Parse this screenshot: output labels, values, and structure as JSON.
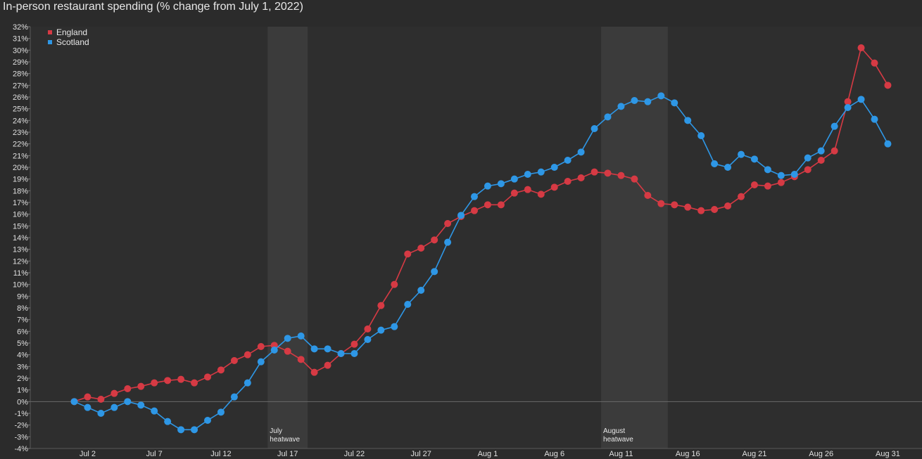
{
  "title": "In-person restaurant spending (% change from July 1, 2022)",
  "chart_data": {
    "type": "line",
    "title": "In-person restaurant spending (% change from July 1, 2022)",
    "xlabel": "",
    "ylabel": "",
    "x_start": "Jul 1",
    "x_end": "Aug 31",
    "x_tick_labels": [
      "Jul 2",
      "Jul 7",
      "Jul 12",
      "Jul 17",
      "Jul 22",
      "Jul 27",
      "Aug 1",
      "Aug 6",
      "Aug 11",
      "Aug 16",
      "Aug 21",
      "Aug 26",
      "Aug 31"
    ],
    "y_tick_labels": [
      "-4%",
      "-3%",
      "-2%",
      "-1%",
      "0%",
      "1%",
      "2%",
      "3%",
      "4%",
      "5%",
      "6%",
      "7%",
      "8%",
      "9%",
      "10%",
      "11%",
      "12%",
      "13%",
      "14%",
      "15%",
      "16%",
      "17%",
      "18%",
      "19%",
      "20%",
      "21%",
      "22%",
      "23%",
      "24%",
      "25%",
      "26%",
      "27%",
      "28%",
      "29%",
      "30%",
      "31%",
      "32%"
    ],
    "ylim": [
      -4,
      32
    ],
    "grid": false,
    "legend_position": "top-left",
    "bands": [
      {
        "label": [
          "July",
          "heatwave"
        ],
        "start": "Jul 16",
        "end": "Jul 19"
      },
      {
        "label": [
          "August",
          "heatwave"
        ],
        "start": "Aug 10",
        "end": "Aug 15"
      }
    ],
    "series": [
      {
        "name": "England",
        "color": "#d63a44",
        "values": [
          0.0,
          0.4,
          0.2,
          0.7,
          1.1,
          1.3,
          1.6,
          1.8,
          1.9,
          1.6,
          2.1,
          2.7,
          3.5,
          4.0,
          4.7,
          4.8,
          4.3,
          3.6,
          2.5,
          3.1,
          4.1,
          4.9,
          6.2,
          8.2,
          10.0,
          12.6,
          13.1,
          13.8,
          15.2,
          15.8,
          16.3,
          16.8,
          16.8,
          17.8,
          18.1,
          17.7,
          18.3,
          18.8,
          19.1,
          19.6,
          19.5,
          19.3,
          19.0,
          17.6,
          16.9,
          16.8,
          16.6,
          16.3,
          16.4,
          16.7,
          17.5,
          18.5,
          18.4,
          18.7,
          19.2,
          19.8,
          20.6,
          21.4,
          25.6,
          30.2,
          28.9,
          27.0
        ]
      },
      {
        "name": "Scotland",
        "color": "#2e97e6",
        "values": [
          0.0,
          -0.5,
          -1.0,
          -0.5,
          0.0,
          -0.3,
          -0.8,
          -1.7,
          -2.4,
          -2.4,
          -1.6,
          -0.9,
          0.4,
          1.6,
          3.4,
          4.4,
          5.4,
          5.6,
          4.5,
          4.5,
          4.1,
          4.1,
          5.3,
          6.1,
          6.4,
          8.3,
          9.5,
          11.1,
          13.6,
          15.9,
          17.5,
          18.4,
          18.6,
          19.0,
          19.4,
          19.6,
          20.0,
          20.6,
          21.3,
          23.3,
          24.3,
          25.2,
          25.7,
          25.6,
          26.1,
          25.5,
          24.0,
          22.7,
          20.3,
          20.0,
          21.1,
          20.7,
          19.8,
          19.3,
          19.4,
          20.8,
          21.4,
          23.5,
          25.1,
          25.8,
          24.1,
          22.0
        ]
      }
    ]
  }
}
